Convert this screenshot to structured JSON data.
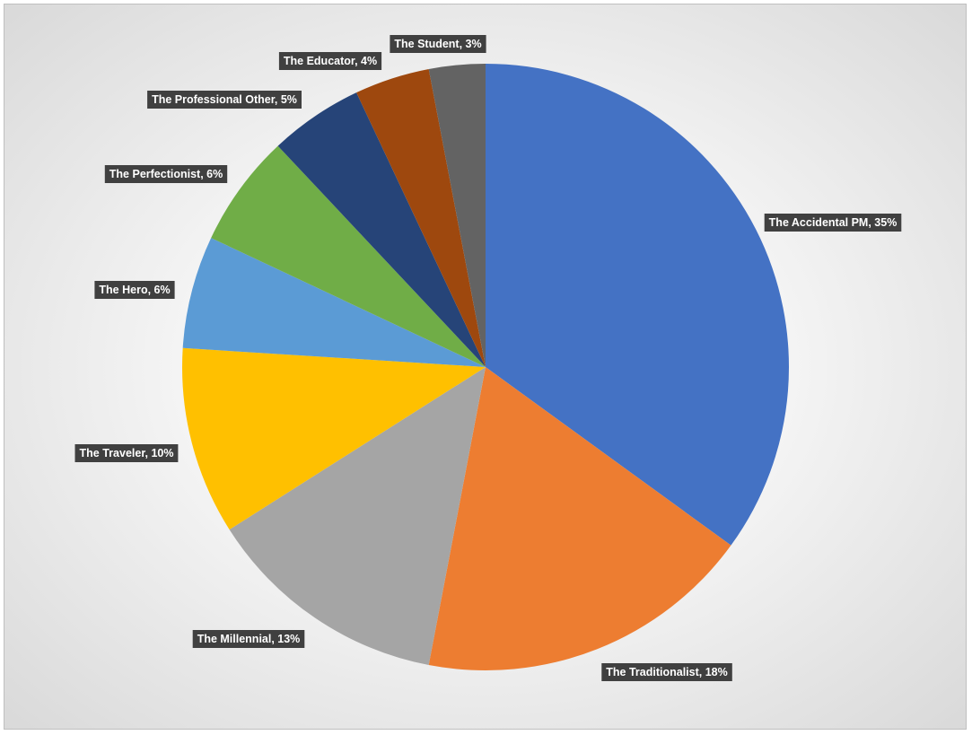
{
  "chart_data": {
    "type": "pie",
    "title": "",
    "start_angle_deg": 0,
    "direction": "clockwise",
    "slices": [
      {
        "label": "The Accidental PM, 35%",
        "name": "The Accidental PM",
        "value": 35,
        "color": "#4472C4"
      },
      {
        "label": "The Traditionalist, 18%",
        "name": "The Traditionalist",
        "value": 18,
        "color": "#ED7D31"
      },
      {
        "label": "The Millennial, 13%",
        "name": "The Millennial",
        "value": 13,
        "color": "#A5A5A5"
      },
      {
        "label": "The Traveler, 10%",
        "name": "The Traveler",
        "value": 10,
        "color": "#FFC000"
      },
      {
        "label": "The Hero, 6%",
        "name": "The Hero",
        "value": 6,
        "color": "#5B9BD5"
      },
      {
        "label": "The Perfectionist, 6%",
        "name": "The Perfectionist",
        "value": 6,
        "color": "#70AD47"
      },
      {
        "label": "The Professional Other, 5%",
        "name": "The Professional Other",
        "value": 5,
        "color": "#264478"
      },
      {
        "label": "The Educator, 4%",
        "name": "The Educator",
        "value": 4,
        "color": "#9E480E"
      },
      {
        "label": "The Student, 3%",
        "name": "The Student",
        "value": 3,
        "color": "#636363"
      }
    ],
    "legend": "none",
    "data_label_style": "dark-box"
  }
}
